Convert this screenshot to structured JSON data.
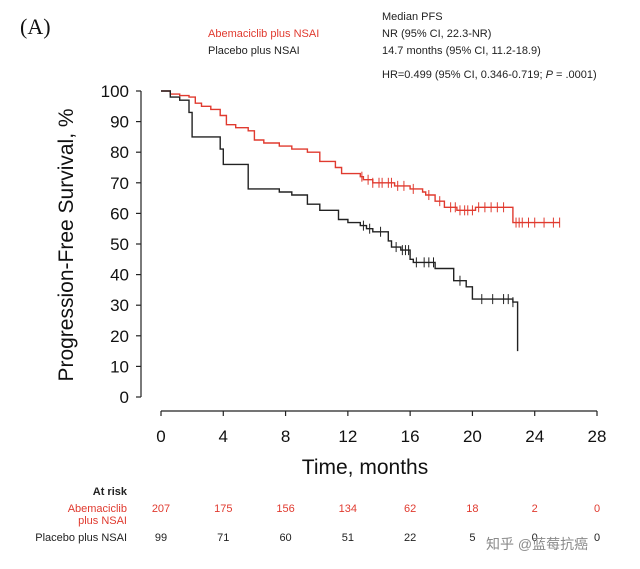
{
  "panel_label": "(A)",
  "legend": {
    "header": "Median PFS",
    "series_a_name": "Abemaciclib plus NSAI",
    "series_a_pfs": "NR (95% CI, 22.3-NR)",
    "series_b_name": "Placebo plus NSAI",
    "series_b_pfs": "14.7 months (95% CI, 11.2-18.9)",
    "hr_prefix": "HR=0.499 (95% CI, 0.346-0.719; ",
    "hr_p": "P",
    "hr_suffix": " = .0001)"
  },
  "risk_table": {
    "header": "At risk",
    "row_a_label_line1": "Abemaciclib",
    "row_a_label_line2": "plus NSAI",
    "row_b_label": "Placebo plus NSAI",
    "row_a_values": [
      "207",
      "175",
      "156",
      "134",
      "62",
      "18",
      "2",
      "0"
    ],
    "row_b_values": [
      "99",
      "71",
      "60",
      "51",
      "22",
      "5",
      "0",
      "0"
    ]
  },
  "watermark": "知乎 @蓝莓抗癌",
  "colors": {
    "series_a": "#e03a2f",
    "series_b": "#222222"
  },
  "chart_data": {
    "type": "line",
    "subtype": "kaplan-meier step curve",
    "xlabel": "Time, months",
    "ylabel": "Progression-Free Survival, %",
    "xlim": [
      0,
      28
    ],
    "ylim": [
      0,
      100
    ],
    "xticks": [
      0,
      4,
      8,
      12,
      16,
      20,
      24,
      28
    ],
    "yticks": [
      0,
      10,
      20,
      30,
      40,
      50,
      60,
      70,
      80,
      90,
      100
    ],
    "series": [
      {
        "name": "Abemaciclib plus NSAI",
        "color": "#e03a2f",
        "points": [
          [
            0,
            100
          ],
          [
            0.6,
            99
          ],
          [
            1.2,
            98.5
          ],
          [
            1.8,
            98
          ],
          [
            2.2,
            96
          ],
          [
            2.6,
            95
          ],
          [
            3.2,
            94
          ],
          [
            3.8,
            92
          ],
          [
            4.2,
            89
          ],
          [
            4.8,
            88
          ],
          [
            5.6,
            87
          ],
          [
            6.0,
            84
          ],
          [
            6.6,
            83
          ],
          [
            7.6,
            82
          ],
          [
            8.4,
            81
          ],
          [
            9.4,
            80
          ],
          [
            10.2,
            77
          ],
          [
            11.2,
            75
          ],
          [
            11.6,
            73
          ],
          [
            12.8,
            72
          ],
          [
            13.0,
            71
          ],
          [
            13.6,
            70
          ],
          [
            15.0,
            69
          ],
          [
            16.0,
            68
          ],
          [
            16.8,
            67
          ],
          [
            17.0,
            66
          ],
          [
            17.6,
            64
          ],
          [
            18.2,
            62
          ],
          [
            19.0,
            61
          ],
          [
            19.8,
            61
          ],
          [
            20.2,
            62
          ],
          [
            22.4,
            62
          ],
          [
            22.6,
            57
          ],
          [
            23.4,
            57
          ],
          [
            25.6,
            57
          ]
        ],
        "censor_times": [
          12.9,
          13.3,
          13.6,
          14.0,
          14.2,
          14.6,
          14.8,
          15.2,
          15.6,
          16.2,
          17.2,
          17.9,
          18.6,
          18.9,
          19.2,
          19.5,
          19.7,
          20.0,
          20.4,
          20.8,
          21.2,
          21.6,
          22.0,
          22.8,
          23.0,
          23.2,
          23.6,
          24.0,
          24.6,
          25.2,
          25.6
        ]
      },
      {
        "name": "Placebo plus NSAI",
        "color": "#222222",
        "points": [
          [
            0,
            100
          ],
          [
            0.6,
            98
          ],
          [
            1.2,
            97
          ],
          [
            1.8,
            93
          ],
          [
            2.0,
            85
          ],
          [
            3.8,
            81
          ],
          [
            4.0,
            76
          ],
          [
            5.6,
            68
          ],
          [
            7.6,
            67
          ],
          [
            8.4,
            66
          ],
          [
            9.4,
            63
          ],
          [
            10.2,
            61
          ],
          [
            11.4,
            58
          ],
          [
            12.0,
            57
          ],
          [
            12.8,
            56
          ],
          [
            13.2,
            55
          ],
          [
            13.6,
            54
          ],
          [
            14.6,
            51
          ],
          [
            14.8,
            49
          ],
          [
            15.4,
            48
          ],
          [
            16.0,
            45
          ],
          [
            16.2,
            44
          ],
          [
            17.6,
            42
          ],
          [
            18.8,
            38
          ],
          [
            19.6,
            36
          ],
          [
            20.0,
            32
          ],
          [
            22.6,
            31
          ],
          [
            22.9,
            15
          ]
        ],
        "censor_times": [
          13.0,
          13.4,
          14.1,
          15.1,
          15.5,
          15.7,
          15.9,
          16.4,
          16.9,
          17.2,
          17.5,
          19.2,
          20.6,
          21.3,
          22.0,
          22.3,
          22.6
        ]
      }
    ]
  }
}
